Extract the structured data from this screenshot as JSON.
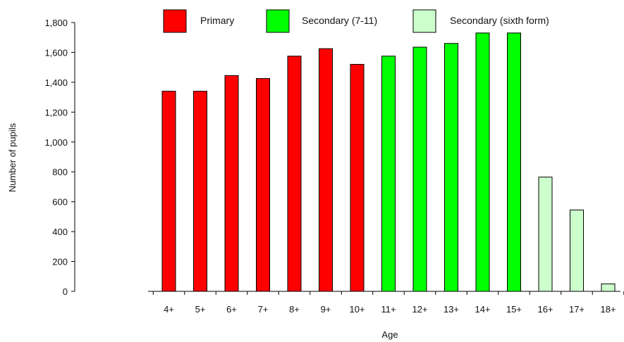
{
  "chart_data": {
    "type": "bar",
    "title": "",
    "xlabel": "Age",
    "ylabel": "Number of pupils",
    "ylim": [
      0,
      1800
    ],
    "yticks": [
      0,
      200,
      400,
      600,
      800,
      1000,
      1200,
      1400,
      1600,
      1800
    ],
    "ytick_labels": [
      "0",
      "200",
      "400",
      "600",
      "800",
      "1,000",
      "1,200",
      "1,400",
      "1,600",
      "1,800"
    ],
    "grid": false,
    "legend_position": "top",
    "categories": [
      "4+",
      "5+",
      "6+",
      "7+",
      "8+",
      "9+",
      "10+",
      "11+",
      "12+",
      "13+",
      "14+",
      "15+",
      "16+",
      "17+",
      "18+"
    ],
    "values": [
      1340,
      1340,
      1445,
      1425,
      1575,
      1625,
      1520,
      1575,
      1635,
      1660,
      1730,
      1730,
      765,
      545,
      50
    ],
    "value_groups": [
      0,
      0,
      0,
      0,
      0,
      0,
      0,
      1,
      1,
      1,
      1,
      1,
      2,
      2,
      2
    ],
    "series": [
      {
        "name": "Primary",
        "color": "#ff0000"
      },
      {
        "name": "Secondary (7-11)",
        "color": "#00ff00"
      },
      {
        "name": "Secondary (sixth form)",
        "color": "#ccffcc"
      }
    ]
  }
}
